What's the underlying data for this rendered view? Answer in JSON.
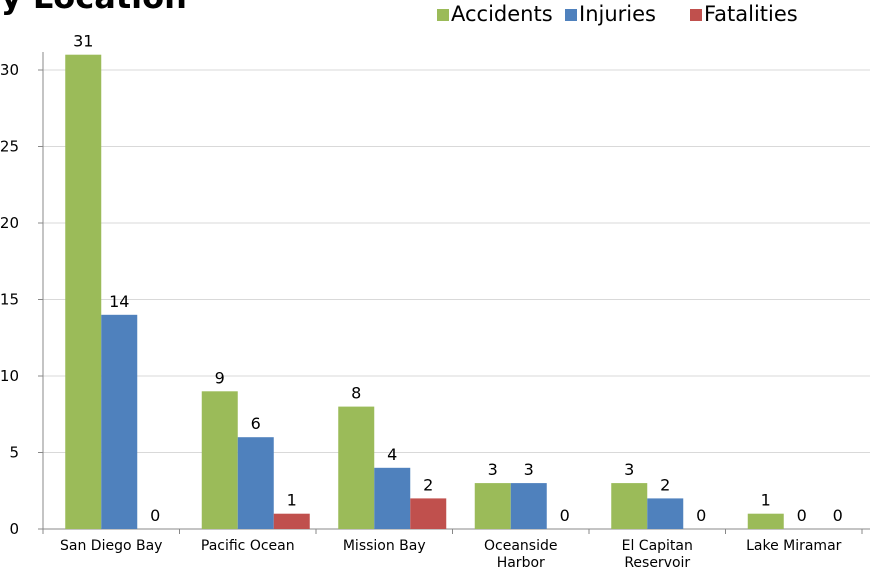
{
  "chart_data": {
    "type": "bar",
    "title": "by Location",
    "categories": [
      "San Diego Bay",
      "Pacific Ocean",
      "Mission Bay",
      "Oceanside Harbor",
      "El Capitan Reservoir",
      "Lake Miramar"
    ],
    "series": [
      {
        "name": "Accidents",
        "color": "#9bbb59",
        "values": [
          31,
          9,
          8,
          3,
          3,
          1
        ]
      },
      {
        "name": "Injuries",
        "color": "#4f81bd",
        "values": [
          14,
          6,
          4,
          3,
          2,
          0
        ]
      },
      {
        "name": "Fatalities",
        "color": "#c0504d",
        "values": [
          0,
          1,
          2,
          0,
          0,
          0
        ]
      }
    ],
    "ylim": [
      0,
      30
    ],
    "yticks": [
      0,
      5,
      10,
      15,
      20,
      25,
      30
    ],
    "grid": true,
    "legend": "top-right"
  }
}
